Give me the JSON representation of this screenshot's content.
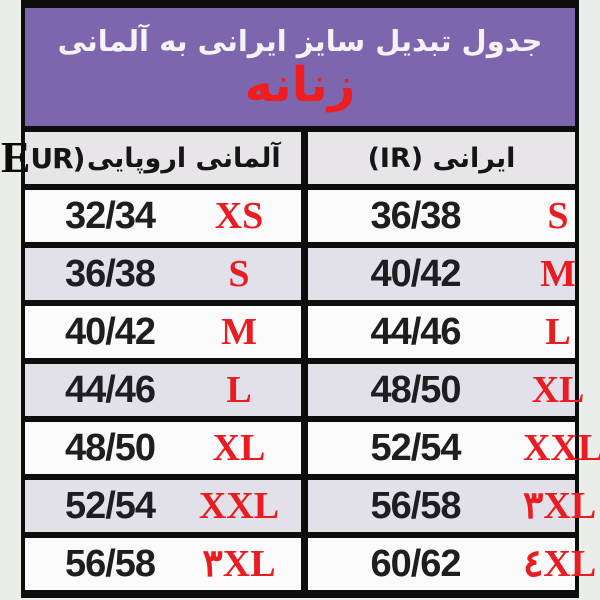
{
  "table": {
    "title_line1": "جدول تبدیل سایز ایرانی به آلمانی",
    "title_line2": "زنانه",
    "columns": {
      "eur": {
        "big_letter": "E",
        "rest": "UR)",
        "label": "آلمانی اروپایی"
      },
      "ir": {
        "label": "ایرانی (IR)"
      }
    },
    "rows": [
      {
        "eur_size": "32/34",
        "eur_letter": "XS",
        "ir_size": "36/38",
        "ir_letter": "S"
      },
      {
        "eur_size": "36/38",
        "eur_letter": "S",
        "ir_size": "40/42",
        "ir_letter": "M"
      },
      {
        "eur_size": "40/42",
        "eur_letter": "M",
        "ir_size": "44/46",
        "ir_letter": "L"
      },
      {
        "eur_size": "44/46",
        "eur_letter": "L",
        "ir_size": "48/50",
        "ir_letter": "XL"
      },
      {
        "eur_size": "48/50",
        "eur_letter": "XL",
        "ir_size": "52/54",
        "ir_letter": "XXL"
      },
      {
        "eur_size": "52/54",
        "eur_letter": "XXL",
        "ir_size": "56/58",
        "ir_letter": "۳XL"
      },
      {
        "eur_size": "56/58",
        "eur_letter": "۳XL",
        "ir_size": "60/62",
        "ir_letter": "٤XL"
      }
    ],
    "colors": {
      "banner_purple": "#7d66ad",
      "accent_red": "#e91c22",
      "subtitle_red": "#ef1d20",
      "row_white": "#fbfafa",
      "row_alt_lavender": "#e2e0e9",
      "header_gray": "#e7e5e8",
      "border_black": "#0d0d0d",
      "page_background": "#eaede8",
      "title_white": "#f6f3f6",
      "number_black": "#1e1e20"
    }
  }
}
